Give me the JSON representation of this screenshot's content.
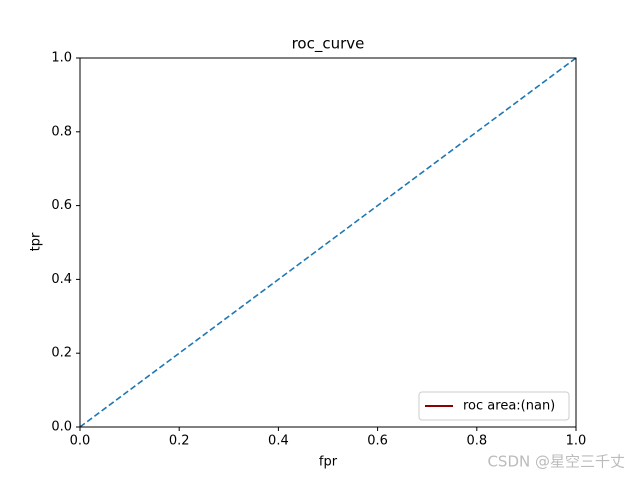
{
  "chart_data": {
    "type": "line",
    "title": "roc_curve",
    "xlabel": "fpr",
    "ylabel": "tpr",
    "x": [
      0,
      1
    ],
    "series": [
      {
        "name": "roc area:(nan)",
        "color": "#8b0000",
        "values": [
          null,
          null
        ]
      },
      {
        "color": "#1f77b4",
        "dashed": true,
        "values": [
          0,
          1
        ]
      }
    ],
    "xlim": [
      0,
      1
    ],
    "ylim": [
      0,
      1
    ],
    "xticks": [
      {
        "value": 0,
        "label": "0.0"
      },
      0.2,
      0.4,
      0.6,
      0.8,
      {
        "value": 1,
        "label": "1.0"
      }
    ],
    "yticks": [
      {
        "value": 0,
        "label": "0.0"
      },
      0.2,
      0.4,
      0.6,
      0.8,
      {
        "value": 1,
        "label": "1.0"
      }
    ],
    "grid": false,
    "legend": "lower right",
    "watermark": "CSDN @星空三千丈"
  }
}
